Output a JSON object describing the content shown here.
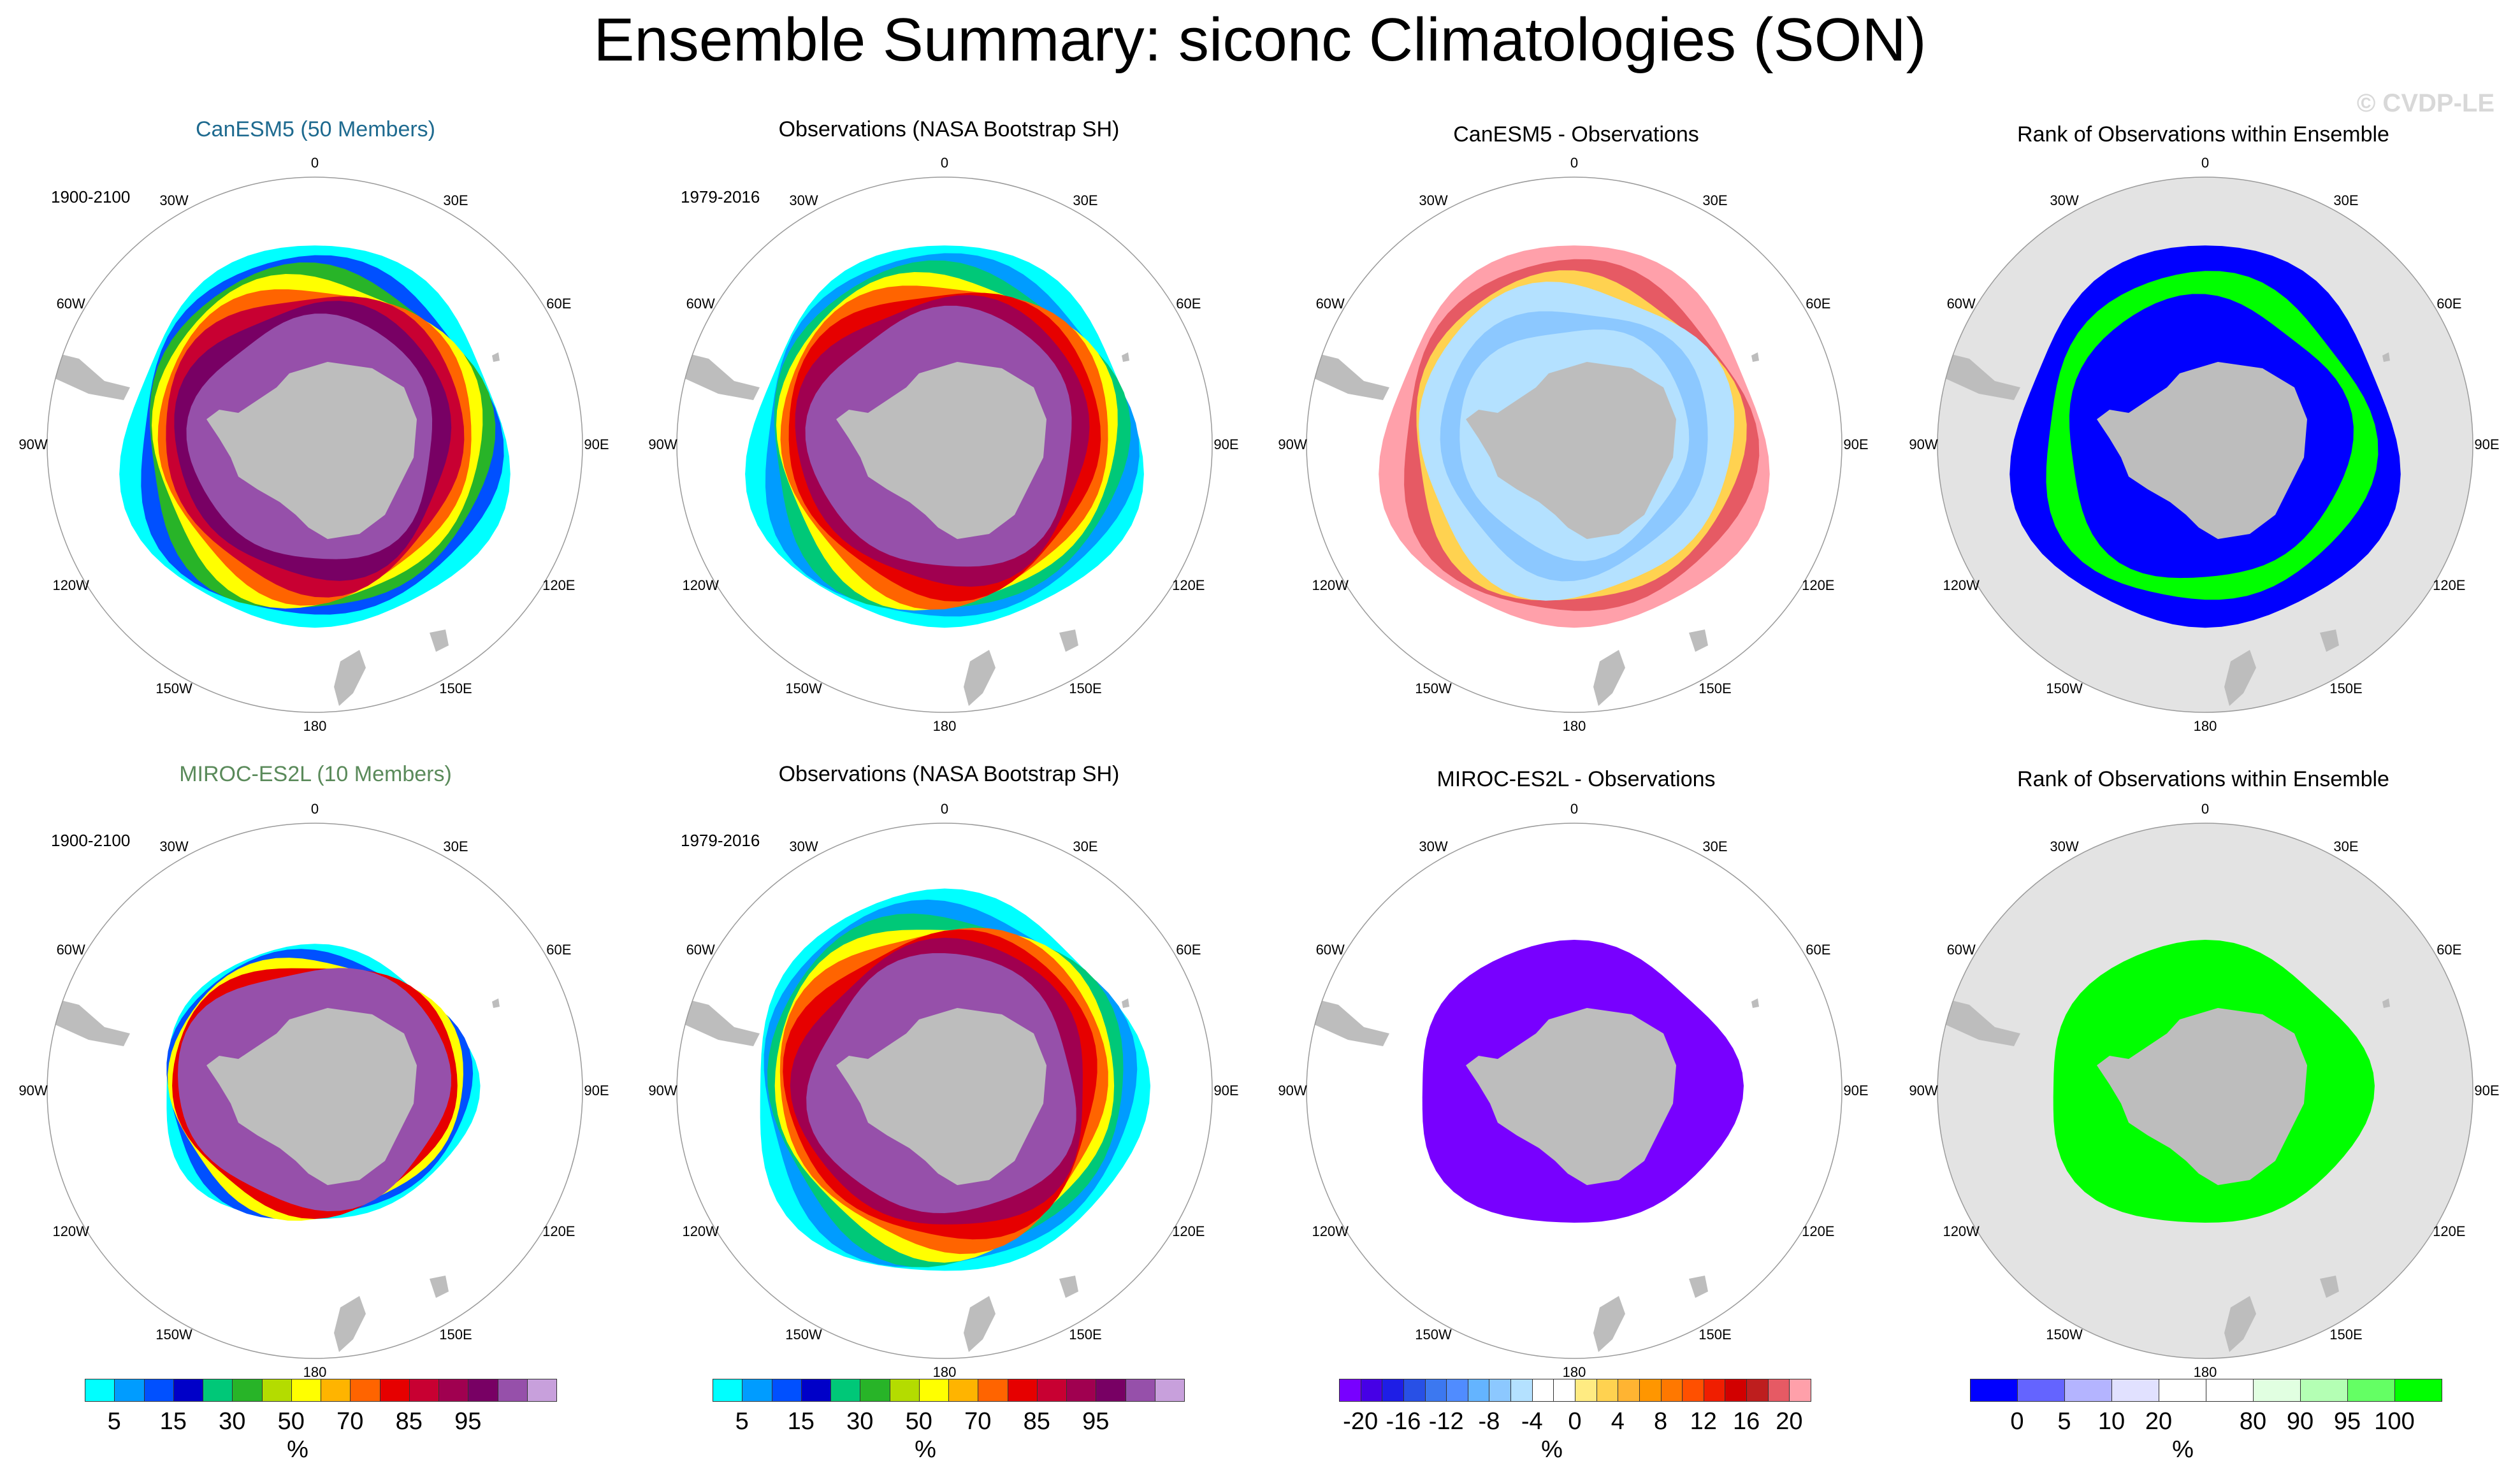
{
  "figure": {
    "title": "Ensemble Summary: siconc Climatologies (SON)",
    "watermark": "© CVDP-LE"
  },
  "rows": [
    {
      "model": "CanESM5 (50 Members)",
      "model_period": "1900-2100",
      "obs_title": "Observations (NASA Bootstrap SH)",
      "obs_period": "1979-2016",
      "diff_title": "CanESM5 - Observations",
      "rank_title": "Rank of Observations within Ensemble"
    },
    {
      "model": "MIROC-ES2L (10 Members)",
      "model_period": "1900-2100",
      "obs_title": "Observations (NASA Bootstrap SH)",
      "obs_period": "1979-2016",
      "diff_title": "MIROC-ES2L - Observations",
      "rank_title": "Rank of Observations within Ensemble"
    }
  ],
  "lon_labels": [
    "0",
    "30E",
    "60E",
    "90E",
    "120E",
    "150E",
    "180",
    "150W",
    "120W",
    "90W",
    "60W",
    "30W"
  ],
  "colorbars": [
    {
      "unit": "%",
      "ticks": [
        "5",
        "15",
        "30",
        "50",
        "70",
        "85",
        "95"
      ],
      "tick_bins": [
        1,
        3,
        5,
        7,
        9,
        11,
        13
      ],
      "colors": [
        "#00ffff",
        "#009cff",
        "#0050ff",
        "#0000c8",
        "#00c878",
        "#28b428",
        "#b4dc00",
        "#ffff00",
        "#ffb400",
        "#ff6400",
        "#e60000",
        "#c80032",
        "#a00050",
        "#780064",
        "#9650aa",
        "#c8a0dc"
      ]
    },
    {
      "unit": "%",
      "ticks": [
        "5",
        "15",
        "30",
        "50",
        "70",
        "85",
        "95"
      ],
      "tick_bins": [
        1,
        3,
        5,
        7,
        9,
        11,
        13
      ],
      "colors": [
        "#00ffff",
        "#009cff",
        "#0050ff",
        "#0000c8",
        "#00c878",
        "#28b428",
        "#b4dc00",
        "#ffff00",
        "#ffb400",
        "#ff6400",
        "#e60000",
        "#c80032",
        "#a00050",
        "#780064",
        "#9650aa",
        "#c8a0dc"
      ]
    },
    {
      "unit": "%",
      "ticks": [
        "-20",
        "-16",
        "-12",
        "-8",
        "-4",
        "0",
        "4",
        "8",
        "12",
        "16",
        "20"
      ],
      "tick_bins": [
        1,
        3,
        5,
        7,
        9,
        11,
        13,
        15,
        17,
        19,
        21
      ],
      "colors": [
        "#7800ff",
        "#4600e6",
        "#1e1ee6",
        "#2850e6",
        "#3c78f0",
        "#508cff",
        "#64b4ff",
        "#8cc8ff",
        "#b4e1ff",
        "#ffffff",
        "#ffffff",
        "#ffeb82",
        "#ffd250",
        "#ffb432",
        "#ff9600",
        "#ff7800",
        "#ff5000",
        "#f01e00",
        "#d20000",
        "#be1e1e",
        "#e65a64",
        "#ffa0aa"
      ]
    },
    {
      "unit": "%",
      "ticks": [
        "0",
        "5",
        "10",
        "20",
        "80",
        "90",
        "95",
        "100"
      ],
      "tick_bins": [
        1,
        2,
        3,
        4,
        6,
        7,
        8,
        9
      ],
      "colors": [
        "#0000ff",
        "#6464ff",
        "#b4b4ff",
        "#e1e1ff",
        "#ffffff",
        "#ffffff",
        "#e1ffe1",
        "#b4ffb4",
        "#64ff64",
        "#00ff00"
      ]
    }
  ]
}
